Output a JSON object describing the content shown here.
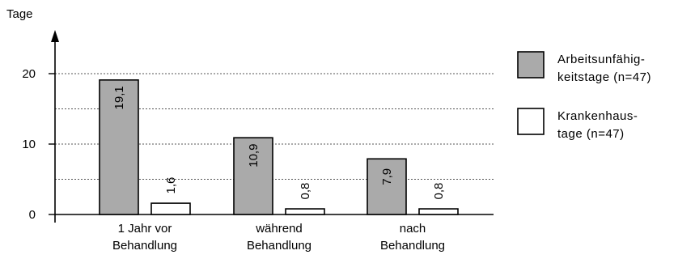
{
  "chart_data": {
    "type": "bar",
    "ylabel": "Tage",
    "ylim": [
      0,
      20
    ],
    "yticks": [
      "0",
      "10",
      "20"
    ],
    "grid": "dotted horizontal lines at 5, 10, 15, 20",
    "categories": [
      [
        "1 Jahr vor",
        "Behandlung"
      ],
      [
        "während",
        "Behandlung"
      ],
      [
        "nach",
        "Behandlung"
      ]
    ],
    "series": [
      {
        "name": [
          "Arbeitsunfähig-",
          "keitstage (n=47)"
        ],
        "color": "#aaaaaa",
        "values": [
          19.1,
          10.9,
          7.9
        ],
        "labels": [
          "19,1",
          "10,9",
          "7,9"
        ]
      },
      {
        "name": [
          "Krankenhaus-",
          "tage (n=47)"
        ],
        "color": "#ffffff",
        "values": [
          1.6,
          0.8,
          0.8
        ],
        "labels": [
          "1,6",
          "0,8",
          "0,8"
        ]
      }
    ],
    "legend_position": "right"
  }
}
